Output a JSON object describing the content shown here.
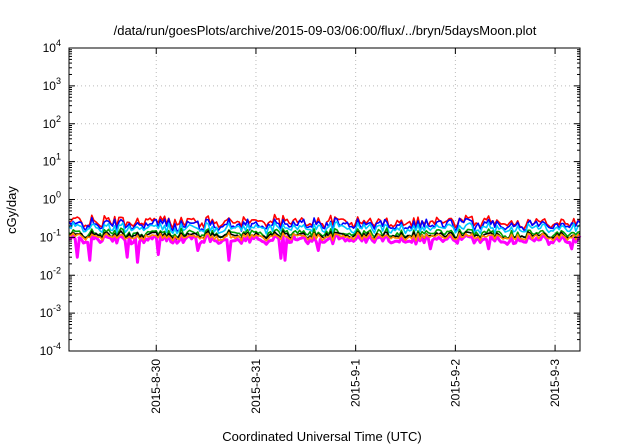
{
  "chart_data": {
    "type": "line",
    "title": "/data/run/goesPlots/archive/2015-09-03/06:00/flux/../bryn/5daysMoon.plot",
    "xlabel": "Coordinated Universal Time (UTC)",
    "ylabel": "cGy/day",
    "y_scale": "log",
    "ylim": [
      0.0001,
      10000
    ],
    "y_ticks": [
      {
        "base": "10",
        "exp": "-4",
        "value": 0.0001
      },
      {
        "base": "10",
        "exp": "-3",
        "value": 0.001
      },
      {
        "base": "10",
        "exp": "-2",
        "value": 0.01
      },
      {
        "base": "10",
        "exp": "-1",
        "value": 0.1
      },
      {
        "base": "10",
        "exp": "0",
        "value": 1
      },
      {
        "base": "10",
        "exp": "1",
        "value": 10
      },
      {
        "base": "10",
        "exp": "2",
        "value": 100
      },
      {
        "base": "10",
        "exp": "3",
        "value": 1000
      },
      {
        "base": "10",
        "exp": "4",
        "value": 10000
      }
    ],
    "xlim": [
      "2015-08-29T03:00",
      "2015-09-03T06:00"
    ],
    "x_ticks": [
      {
        "label": "2015-8-30",
        "value": "2015-08-30T00:00"
      },
      {
        "label": "2015-8-31",
        "value": "2015-08-31T00:00"
      },
      {
        "label": "2015-9-1",
        "value": "2015-09-01T00:00"
      },
      {
        "label": "2015-9-2",
        "value": "2015-09-02T00:00"
      },
      {
        "label": "2015-9-3",
        "value": "2015-09-03T00:00"
      }
    ],
    "grid": true,
    "series": [
      {
        "color": "#ff00ff",
        "base": 0.09,
        "jitter": 0.18,
        "dips": [
          {
            "t": "2015-08-29T05:00",
            "value": 0.03
          },
          {
            "t": "2015-08-29T08:00",
            "value": 0.025
          },
          {
            "t": "2015-08-29T17:00",
            "value": 0.03
          },
          {
            "t": "2015-08-29T19:30",
            "value": 0.022
          },
          {
            "t": "2015-08-30T00:30",
            "value": 0.035
          },
          {
            "t": "2015-08-30T10:00",
            "value": 0.045
          },
          {
            "t": "2015-08-30T17:30",
            "value": 0.025
          },
          {
            "t": "2015-08-31T06:00",
            "value": 0.028
          },
          {
            "t": "2015-08-31T07:00",
            "value": 0.025
          },
          {
            "t": "2015-08-31T15:00",
            "value": 0.045
          },
          {
            "t": "2015-09-01T18:00",
            "value": 0.05
          },
          {
            "t": "2015-09-02T08:00",
            "value": 0.05
          },
          {
            "t": "2015-09-03T04:00",
            "value": 0.05
          }
        ]
      },
      {
        "color": "#ff0000",
        "base": 0.26,
        "jitter": 0.25,
        "dips": []
      },
      {
        "color": "#0000ff",
        "base": 0.22,
        "jitter": 0.25,
        "dips": []
      },
      {
        "color": "#00c8ff",
        "base": 0.18,
        "jitter": 0.22,
        "dips": []
      },
      {
        "color": "#00a000",
        "base": 0.13,
        "jitter": 0.18,
        "dips": []
      },
      {
        "color": "#000000",
        "base": 0.115,
        "jitter": 0.15,
        "dips": []
      },
      {
        "color": "#ff8c00",
        "base": 0.105,
        "jitter": 0.14,
        "dips": []
      }
    ]
  }
}
